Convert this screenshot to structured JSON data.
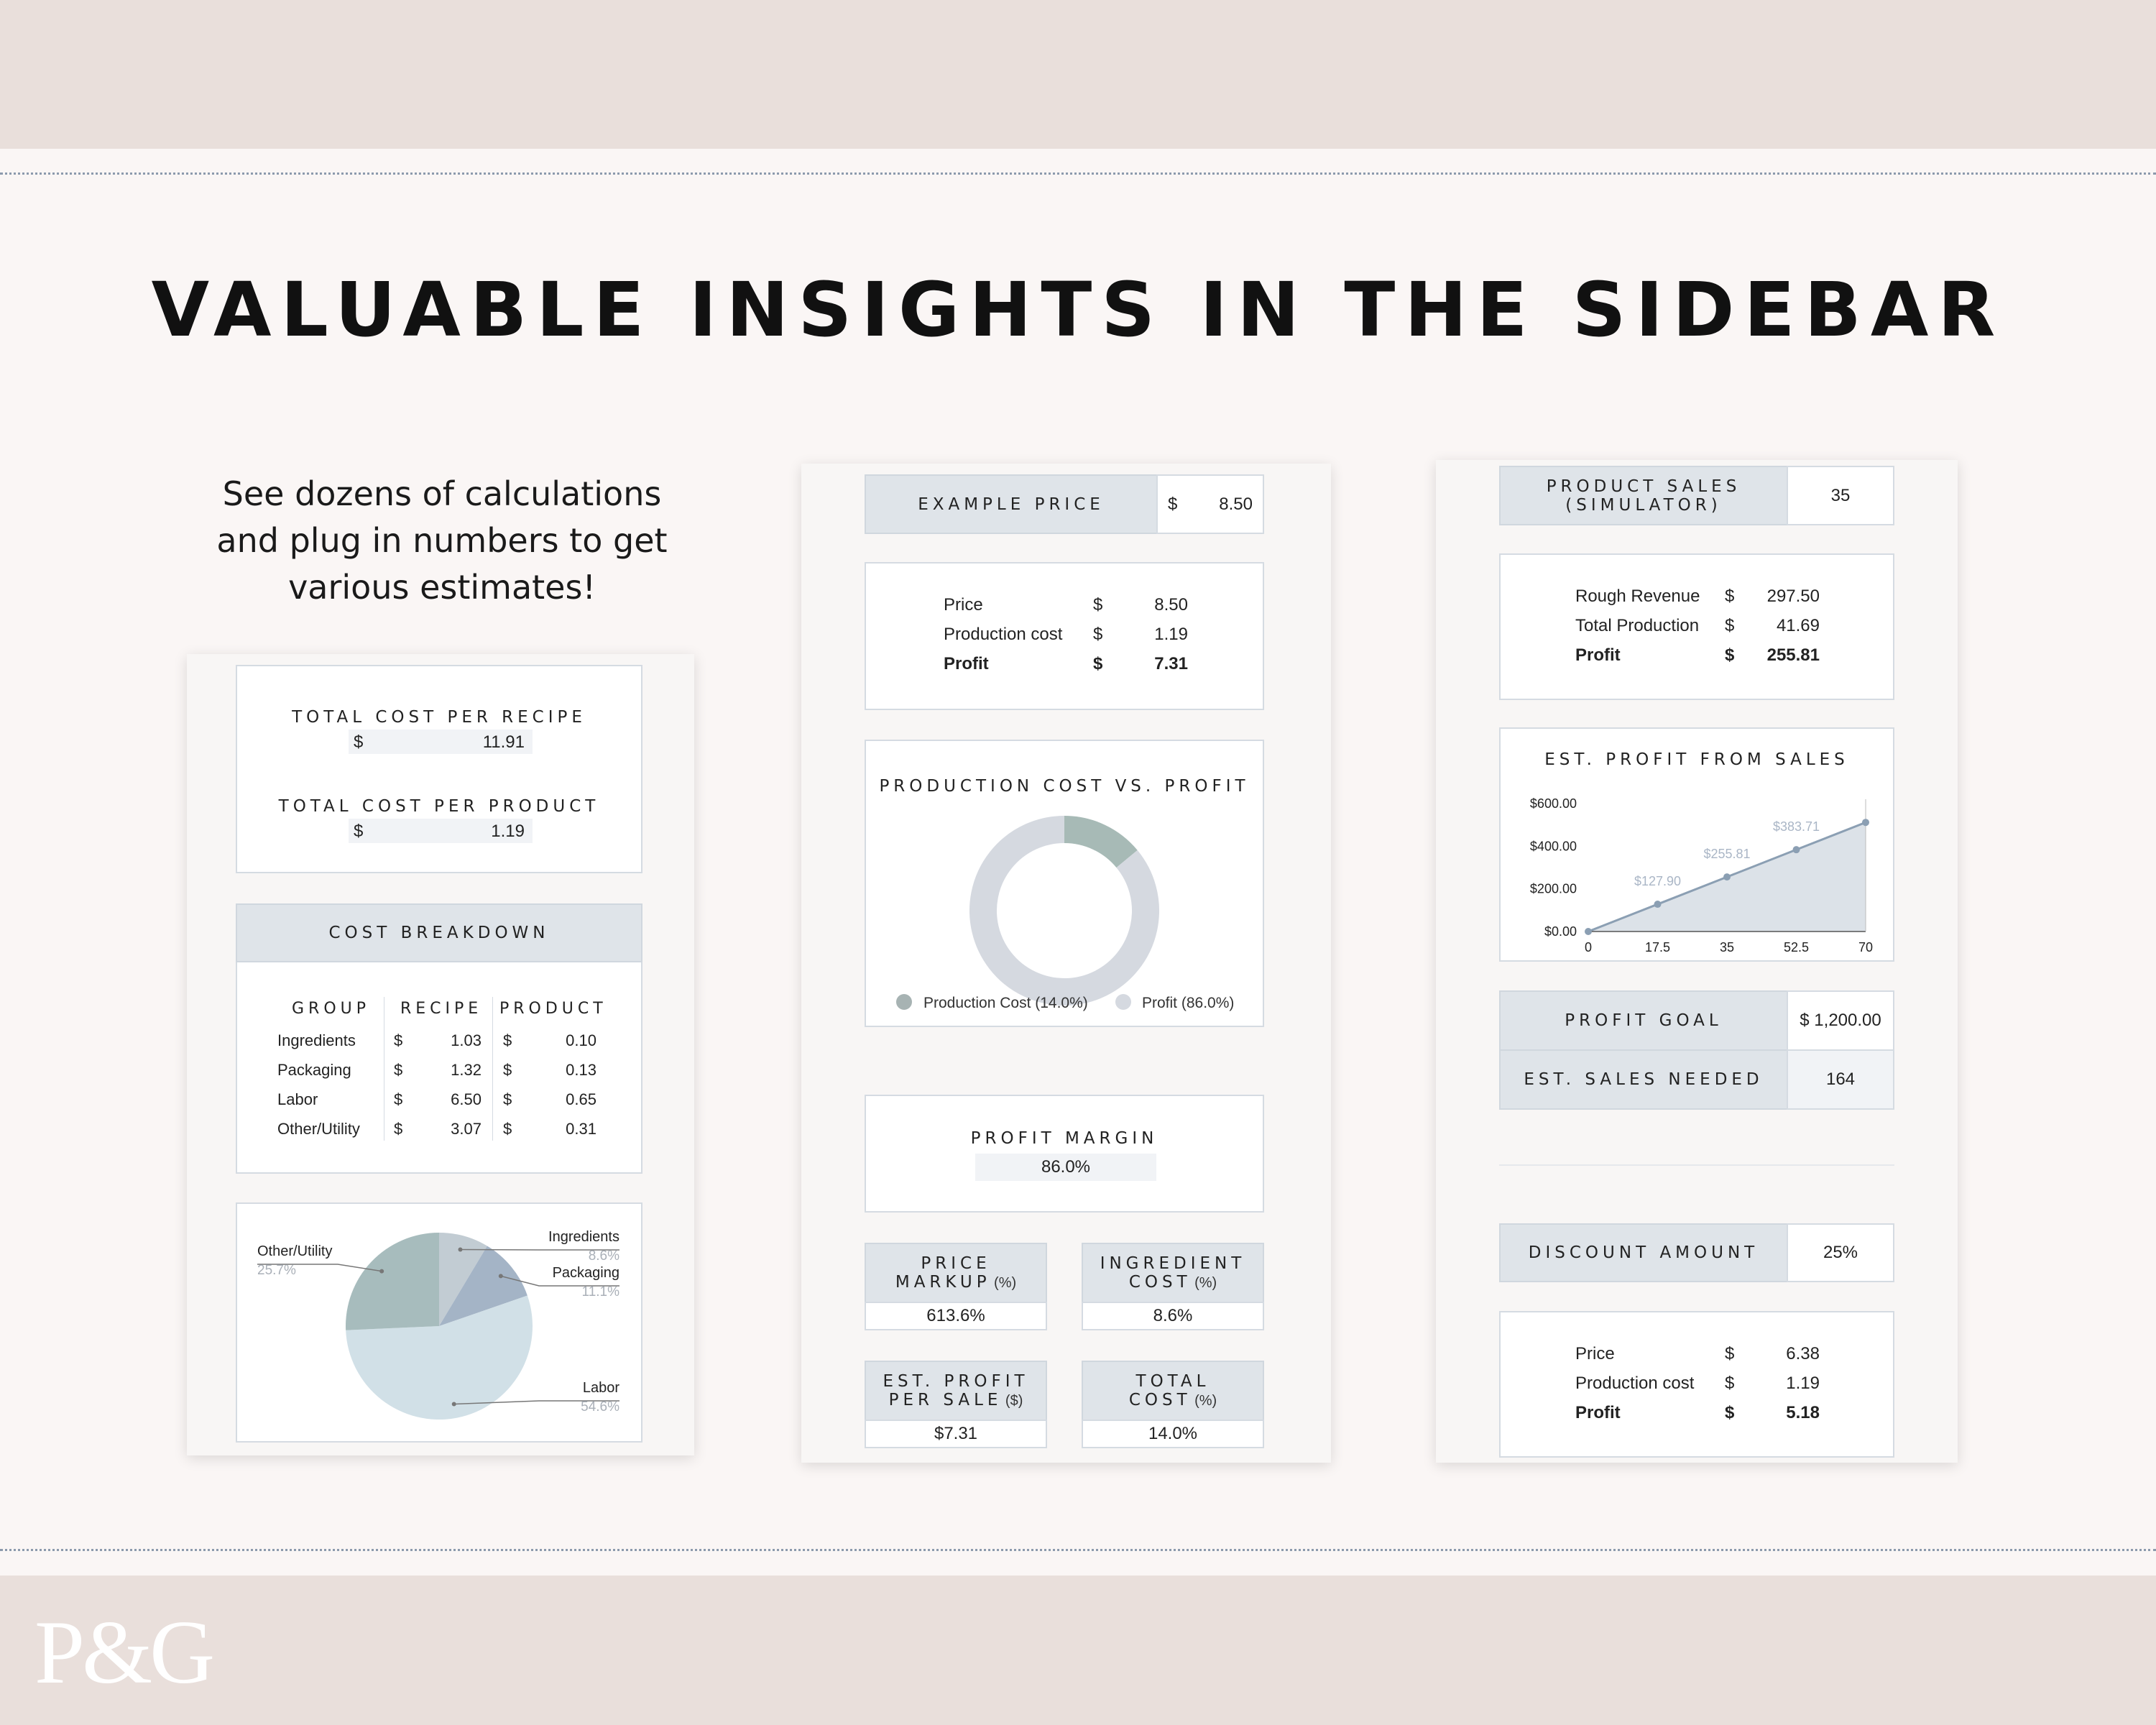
{
  "headline": "VALUABLE INSIGHTS IN THE SIDEBAR",
  "intro": [
    "See dozens of calculations",
    "and plug in numbers to get",
    "various estimates!"
  ],
  "logo": "P&G",
  "colors": {
    "band": "#e9dfdb",
    "page": "#faf6f5",
    "header_cell": "#dfe4e9",
    "accent_slate": "#8b9fb3"
  },
  "left": {
    "total_cost_per_recipe": {
      "label": "TOTAL COST PER RECIPE",
      "currency": "$",
      "value": "11.91"
    },
    "total_cost_per_product": {
      "label": "TOTAL COST PER PRODUCT",
      "currency": "$",
      "value": "1.19"
    },
    "breakdown": {
      "title": "COST BREAKDOWN",
      "headers": [
        "GROUP",
        "RECIPE",
        "PRODUCT"
      ],
      "rows": [
        {
          "group": "Ingredients",
          "c1": "$",
          "recipe": "1.03",
          "c2": "$",
          "product": "0.10"
        },
        {
          "group": "Packaging",
          "c1": "$",
          "recipe": "1.32",
          "c2": "$",
          "product": "0.13"
        },
        {
          "group": "Labor",
          "c1": "$",
          "recipe": "6.50",
          "c2": "$",
          "product": "0.65"
        },
        {
          "group": "Other/Utility",
          "c1": "$",
          "recipe": "3.07",
          "c2": "$",
          "product": "0.31"
        }
      ]
    },
    "pie": {
      "slices": [
        {
          "name": "Ingredients",
          "pct": "8.6%",
          "value": 8.6,
          "color": "#c2ccd3"
        },
        {
          "name": "Packaging",
          "pct": "11.1%",
          "value": 11.1,
          "color": "#a4b4c6"
        },
        {
          "name": "Labor",
          "pct": "54.6%",
          "value": 54.6,
          "color": "#d1e0e7"
        },
        {
          "name": "Other/Utility",
          "pct": "25.7%",
          "value": 25.7,
          "color": "#a7bcbd"
        }
      ]
    }
  },
  "middle": {
    "example_price": {
      "label": "EXAMPLE PRICE",
      "currency": "$",
      "value": "8.50"
    },
    "summary": [
      {
        "label": "Price",
        "cur": "$",
        "value": "8.50",
        "bold": false
      },
      {
        "label": "Production cost",
        "cur": "$",
        "value": "1.19",
        "bold": false
      },
      {
        "label": "Profit",
        "cur": "$",
        "value": "7.31",
        "bold": true
      }
    ],
    "donut": {
      "title": "PRODUCTION COST VS. PROFIT",
      "legend": [
        "Production Cost (14.0%)",
        "Profit (86.0%)"
      ],
      "values": [
        14.0,
        86.0
      ],
      "colors": [
        "#a7bab6",
        "#d5d9e0"
      ]
    },
    "profit_margin": {
      "label": "PROFIT MARGIN",
      "value": "86.0%"
    },
    "stats": [
      {
        "label1": "PRICE",
        "label2": "MARKUP",
        "unit": "(%)",
        "value": "613.6%"
      },
      {
        "label1": "INGREDIENT",
        "label2": "COST",
        "unit": "(%)",
        "value": "8.6%"
      },
      {
        "label1": "EST. PROFIT",
        "label2": "PER SALE",
        "unit": "($)",
        "value": "$7.31"
      },
      {
        "label1": "TOTAL",
        "label2": "COST",
        "unit": "(%)",
        "value": "14.0%"
      }
    ]
  },
  "right": {
    "simulator": {
      "label1": "PRODUCT SALES",
      "label2": "(SIMULATOR)",
      "value": "35"
    },
    "summary": [
      {
        "label": "Rough Revenue",
        "cur": "$",
        "value": "297.50",
        "bold": false
      },
      {
        "label": "Total Production",
        "cur": "$",
        "value": "41.69",
        "bold": false
      },
      {
        "label": "Profit",
        "cur": "$",
        "value": "255.81",
        "bold": true
      }
    ],
    "profit_goal": {
      "label": "PROFIT GOAL",
      "value": "$  1,200.00"
    },
    "sales_needed": {
      "label": "EST. SALES NEEDED",
      "value": "164"
    },
    "discount": {
      "label": "DISCOUNT AMOUNT",
      "value": "25%"
    },
    "discount_summary": [
      {
        "label": "Price",
        "cur": "$",
        "value": "6.38",
        "bold": false
      },
      {
        "label": "Production cost",
        "cur": "$",
        "value": "1.19",
        "bold": false
      },
      {
        "label": "Profit",
        "cur": "$",
        "value": "5.18",
        "bold": true
      }
    ]
  },
  "chart_data": {
    "type": "area",
    "title": "EST. PROFIT FROM SALES",
    "x": [
      0,
      17.5,
      35,
      52.5,
      70
    ],
    "y": [
      0,
      127.9,
      255.81,
      383.71,
      511.62
    ],
    "point_labels": [
      "",
      "$127.90",
      "$255.81",
      "$383.71",
      ""
    ],
    "x_ticks": [
      "0",
      "17.5",
      "35",
      "52.5",
      "70"
    ],
    "y_ticks": [
      "$0.00",
      "$200.00",
      "$400.00",
      "$600.00"
    ],
    "xlim": [
      0,
      70
    ],
    "ylim": [
      0,
      600
    ],
    "color": "#8b9fb3",
    "grid": false
  }
}
